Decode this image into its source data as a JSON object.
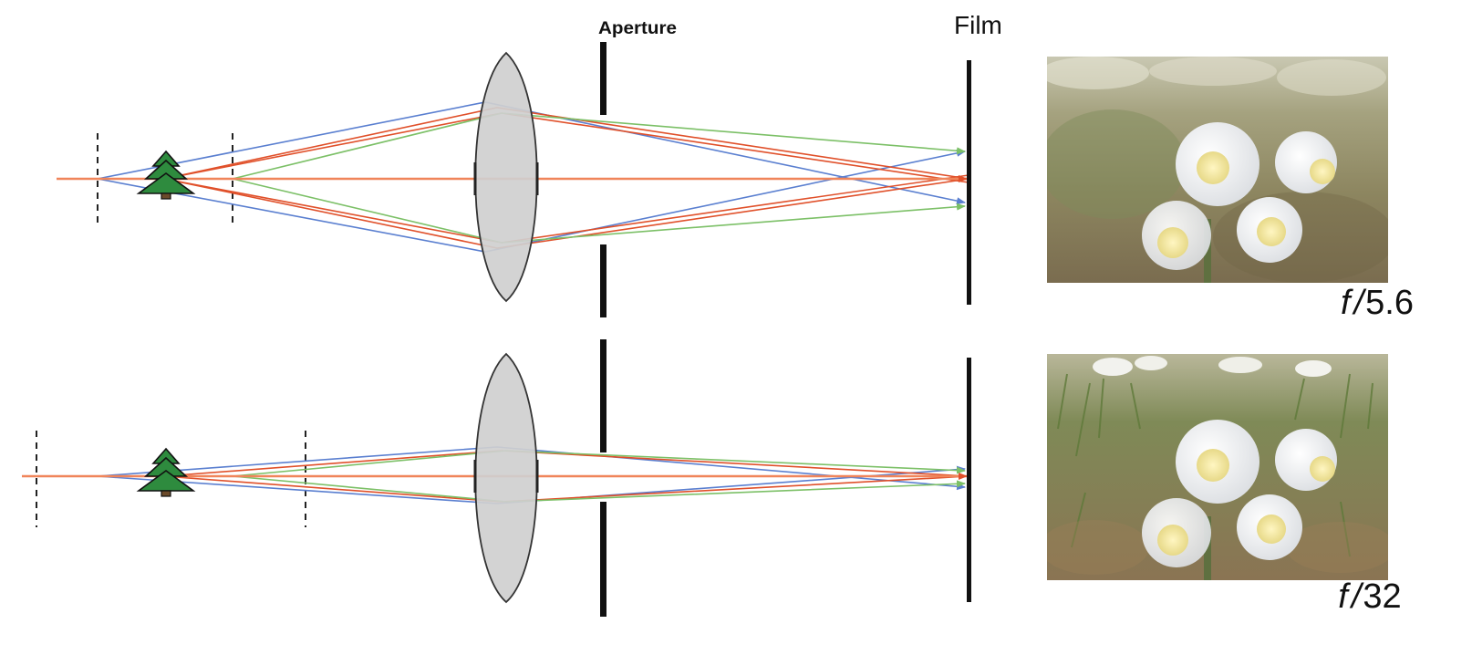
{
  "labels": {
    "aperture": "Aperture",
    "film": "Film"
  },
  "panels": [
    {
      "f_prefix": "f",
      "f_slash": "/",
      "f_value": "5.6",
      "photo": "daffodils-shallow-depth-of-field"
    },
    {
      "f_prefix": "f",
      "f_slash": "/",
      "f_value": "32",
      "photo": "daffodils-deep-depth-of-field"
    }
  ],
  "colors": {
    "ray_orange": "#f0855a",
    "ray_red": "#e0502a",
    "ray_blue": "#5a7fd0",
    "ray_green": "#7cc067",
    "lens_fill": "#cfcfcf",
    "tree": "#2e8b3e"
  },
  "icons": [
    "tree-icon",
    "lens-icon",
    "aperture-stop",
    "film-plane"
  ]
}
